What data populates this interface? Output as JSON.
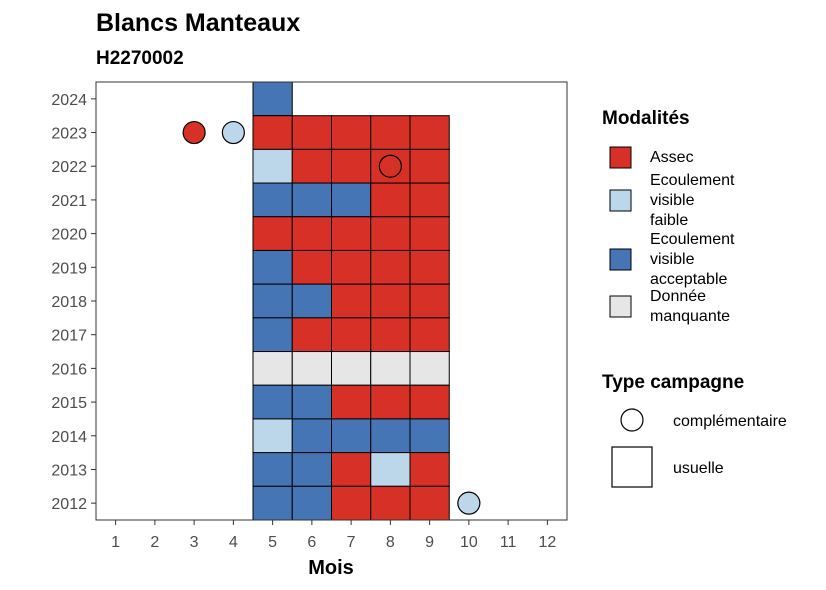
{
  "chart_data": {
    "type": "heatmap",
    "title": "Blancs Manteaux",
    "subtitle": "H2270002",
    "xlabel": "Mois",
    "ylabel": "",
    "x_ticks": [
      1,
      2,
      3,
      4,
      5,
      6,
      7,
      8,
      9,
      10,
      11,
      12
    ],
    "y_ticks": [
      2012,
      2013,
      2014,
      2015,
      2016,
      2017,
      2018,
      2019,
      2020,
      2021,
      2022,
      2023,
      2024
    ],
    "xlim": [
      0.5,
      12.5
    ],
    "ylim": [
      2011.5,
      2024.5
    ],
    "grid": false,
    "colors": {
      "Assec": "#d73027",
      "Ecoulement visible faible": "#bcd7ea",
      "Ecoulement visible acceptable": "#4575b4",
      "Donnée manquante": "#e6e6e6"
    },
    "legend_modalites": {
      "title": "Modalités",
      "items": [
        {
          "key": "Assec",
          "label_lines": [
            "Assec"
          ]
        },
        {
          "key": "Ecoulement visible faible",
          "label_lines": [
            "Ecoulement",
            "visible",
            "faible"
          ]
        },
        {
          "key": "Ecoulement visible acceptable",
          "label_lines": [
            "Ecoulement",
            "visible",
            "acceptable"
          ]
        },
        {
          "key": "Donnée manquante",
          "label_lines": [
            "Donnée",
            "manquante"
          ]
        }
      ]
    },
    "legend_type": {
      "title": "Type campagne",
      "items": [
        {
          "key": "complémentaire",
          "label": "complémentaire",
          "shape": "circle"
        },
        {
          "key": "usuelle",
          "label": "usuelle",
          "shape": "square"
        }
      ]
    },
    "usuelle": [
      {
        "year": 2024,
        "months": {
          "5": "Ecoulement visible acceptable"
        }
      },
      {
        "year": 2023,
        "months": {
          "5": "Assec",
          "6": "Assec",
          "7": "Assec",
          "8": "Assec",
          "9": "Assec"
        }
      },
      {
        "year": 2022,
        "months": {
          "5": "Ecoulement visible faible",
          "6": "Assec",
          "7": "Assec",
          "8": "Assec",
          "9": "Assec"
        }
      },
      {
        "year": 2021,
        "months": {
          "5": "Ecoulement visible acceptable",
          "6": "Ecoulement visible acceptable",
          "7": "Ecoulement visible acceptable",
          "8": "Assec",
          "9": "Assec"
        }
      },
      {
        "year": 2020,
        "months": {
          "5": "Assec",
          "6": "Assec",
          "7": "Assec",
          "8": "Assec",
          "9": "Assec"
        }
      },
      {
        "year": 2019,
        "months": {
          "5": "Ecoulement visible acceptable",
          "6": "Assec",
          "7": "Assec",
          "8": "Assec",
          "9": "Assec"
        }
      },
      {
        "year": 2018,
        "months": {
          "5": "Ecoulement visible acceptable",
          "6": "Ecoulement visible acceptable",
          "7": "Assec",
          "8": "Assec",
          "9": "Assec"
        }
      },
      {
        "year": 2017,
        "months": {
          "5": "Ecoulement visible acceptable",
          "6": "Assec",
          "7": "Assec",
          "8": "Assec",
          "9": "Assec"
        }
      },
      {
        "year": 2016,
        "months": {
          "5": "Donnée manquante",
          "6": "Donnée manquante",
          "7": "Donnée manquante",
          "8": "Donnée manquante",
          "9": "Donnée manquante"
        }
      },
      {
        "year": 2015,
        "months": {
          "5": "Ecoulement visible acceptable",
          "6": "Ecoulement visible acceptable",
          "7": "Assec",
          "8": "Assec",
          "9": "Assec"
        }
      },
      {
        "year": 2014,
        "months": {
          "5": "Ecoulement visible faible",
          "6": "Ecoulement visible acceptable",
          "7": "Ecoulement visible acceptable",
          "8": "Ecoulement visible acceptable",
          "9": "Ecoulement visible acceptable"
        }
      },
      {
        "year": 2013,
        "months": {
          "5": "Ecoulement visible acceptable",
          "6": "Ecoulement visible acceptable",
          "7": "Assec",
          "8": "Ecoulement visible faible",
          "9": "Assec"
        }
      },
      {
        "year": 2012,
        "months": {
          "5": "Ecoulement visible acceptable",
          "6": "Ecoulement visible acceptable",
          "7": "Assec",
          "8": "Assec",
          "9": "Assec"
        }
      }
    ],
    "complementaire": [
      {
        "year": 2023,
        "month": 3,
        "value": "Assec"
      },
      {
        "year": 2023,
        "month": 4,
        "value": "Ecoulement visible faible"
      },
      {
        "year": 2022,
        "month": 8,
        "value": "Assec"
      },
      {
        "year": 2012,
        "month": 10,
        "value": "Ecoulement visible faible"
      }
    ]
  }
}
